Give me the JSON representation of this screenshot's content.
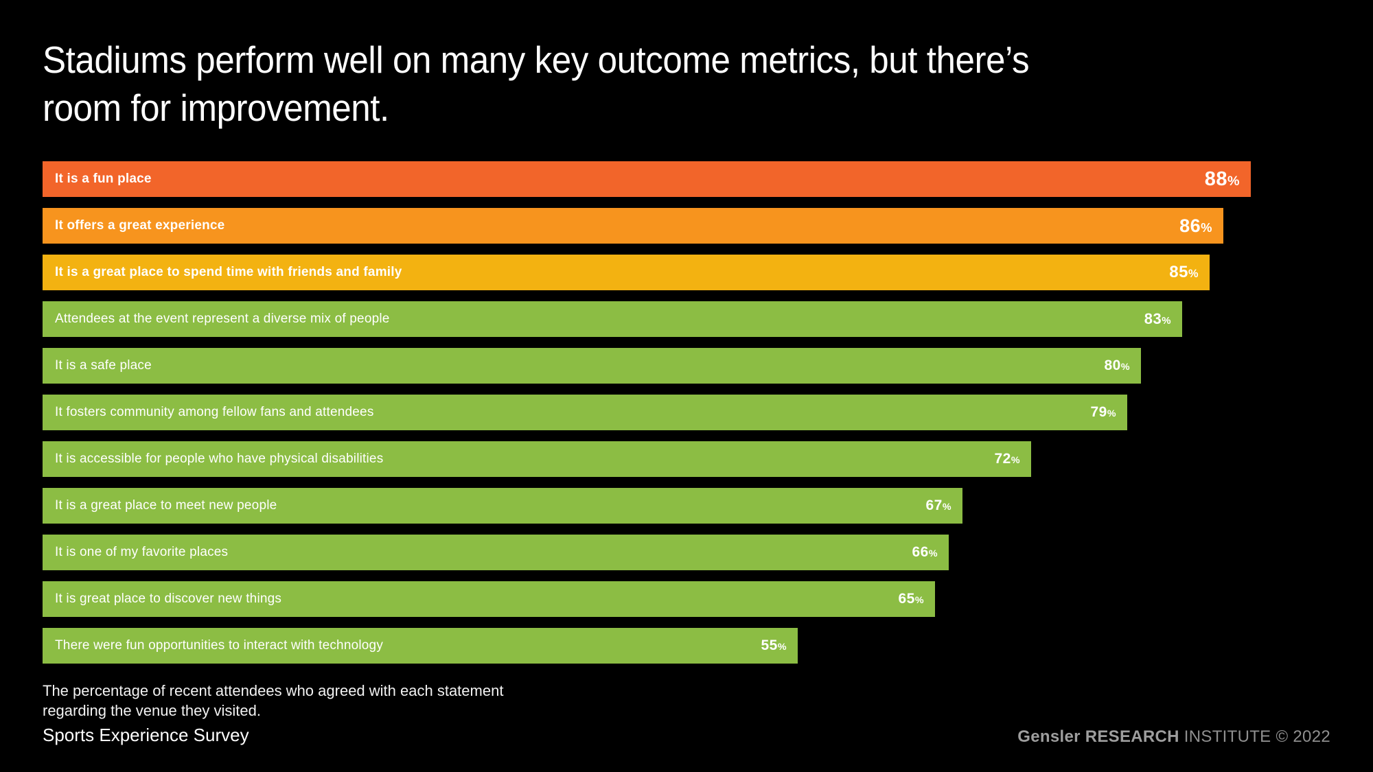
{
  "title": {
    "line1": "Stadiums perform well on many key outcome metrics, but there’s",
    "line2": "room for improvement."
  },
  "chart_data": {
    "type": "bar",
    "orientation": "horizontal",
    "unit": "%",
    "xlim": [
      0,
      100
    ],
    "categories": [
      "It is a fun place",
      "It offers a great experience",
      "It is a great place to spend time with friends and family",
      "Attendees at the event represent a diverse mix of people",
      "It is a safe place",
      "It fosters community among fellow fans and attendees",
      "It is accessible for people who have physical disabilities",
      "It is a great place to meet new people",
      "It is one of my favorite places",
      "It is great place to discover new things",
      "There were fun opportunities to interact with technology"
    ],
    "values": [
      88,
      86,
      85,
      83,
      80,
      79,
      72,
      67,
      66,
      65,
      55
    ],
    "value_labels": [
      "88%",
      "86%",
      "85%",
      "83%",
      "80%",
      "79%",
      "72%",
      "67%",
      "66%",
      "65%",
      "55%"
    ],
    "bar_colors": [
      "#F2652A",
      "#F7941E",
      "#F3B211",
      "#8CBD44",
      "#8CBD44",
      "#8CBD44",
      "#8CBD44",
      "#8CBD44",
      "#8CBD44",
      "#8CBD44",
      "#8CBD44"
    ],
    "background": "#000000",
    "grid": false,
    "legend": false
  },
  "footnote": {
    "line1": "The percentage of recent attendees who agreed with each statement",
    "line2": "regarding the venue they visited."
  },
  "source_label": "Sports Experience Survey",
  "credit": {
    "brand": "Gensler",
    "org_bold": "RESEARCH",
    "org_rest": "INSTITUTE © 2022"
  }
}
